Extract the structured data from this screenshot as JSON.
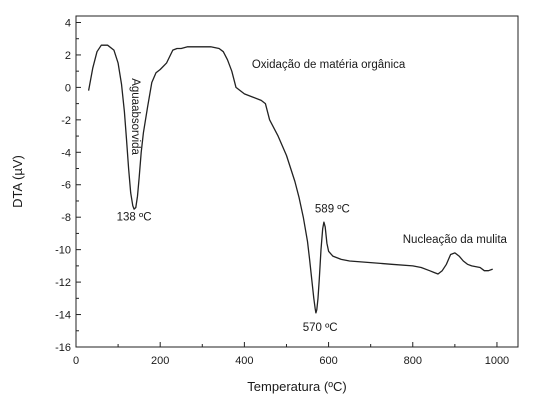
{
  "chart_data": {
    "type": "line",
    "xlabel": "Temperatura (ºC)",
    "ylabel": "DTA (µV)",
    "xlim": [
      0,
      1050
    ],
    "ylim": [
      -16,
      4.4
    ],
    "x_ticks": [
      0,
      200,
      400,
      600,
      800,
      1000
    ],
    "y_ticks": [
      4,
      2,
      0,
      -2,
      -4,
      -6,
      -8,
      -10,
      -12,
      -14,
      -16
    ],
    "grid": false,
    "line_color": "#222222",
    "series": [
      {
        "x": [
          30,
          40,
          50,
          60,
          75,
          90,
          100,
          108,
          115,
          120,
          125,
          130,
          135,
          138,
          142,
          146,
          150,
          155,
          160,
          170,
          180,
          190,
          200,
          215,
          230,
          240,
          250,
          265,
          280,
          300,
          320,
          340,
          350,
          360,
          370,
          380,
          400,
          420,
          440,
          450,
          460,
          480,
          500,
          520,
          530,
          540,
          550,
          555,
          560,
          565,
          568,
          570,
          572,
          575,
          578,
          582,
          586,
          589,
          592,
          596,
          600,
          610,
          630,
          650,
          700,
          750,
          800,
          820,
          840,
          850,
          860,
          870,
          880,
          890,
          900,
          910,
          920,
          930,
          940,
          960,
          970,
          980,
          990
        ],
        "y": [
          -0.2,
          1.2,
          2.2,
          2.6,
          2.6,
          2.3,
          1.5,
          0.2,
          -1.5,
          -3.2,
          -5.0,
          -6.5,
          -7.3,
          -7.5,
          -7.4,
          -6.7,
          -5.6,
          -4.0,
          -2.8,
          -1.2,
          0.3,
          0.9,
          1.1,
          1.5,
          2.3,
          2.4,
          2.4,
          2.5,
          2.5,
          2.5,
          2.5,
          2.4,
          2.2,
          1.7,
          1.0,
          0.0,
          -0.4,
          -0.6,
          -0.8,
          -1.0,
          -2.0,
          -3.0,
          -4.2,
          -5.8,
          -6.8,
          -8.0,
          -9.5,
          -10.6,
          -11.8,
          -13.0,
          -13.6,
          -13.9,
          -13.7,
          -13.0,
          -11.8,
          -10.0,
          -8.7,
          -8.3,
          -8.6,
          -9.6,
          -10.1,
          -10.4,
          -10.6,
          -10.7,
          -10.8,
          -10.9,
          -11.0,
          -11.1,
          -11.3,
          -11.4,
          -11.5,
          -11.3,
          -10.9,
          -10.3,
          -10.2,
          -10.4,
          -10.7,
          -10.9,
          -11.0,
          -11.1,
          -11.3,
          -11.3,
          -11.2
        ]
      }
    ],
    "annotations": [
      {
        "text": "Aguaabsorvida",
        "x": 133,
        "y": -1.8,
        "rotate": 90
      },
      {
        "text": "138 ºC",
        "x": 138,
        "y": -8.2
      },
      {
        "text": "Oxidação de matéria orgânica",
        "x": 600,
        "y": 1.2
      },
      {
        "text": "589 ºC",
        "x": 609,
        "y": -7.7
      },
      {
        "text": "570 ºC",
        "x": 580,
        "y": -15.0
      },
      {
        "text": "Nucleação da mulita",
        "x": 900,
        "y": -9.6
      }
    ]
  }
}
